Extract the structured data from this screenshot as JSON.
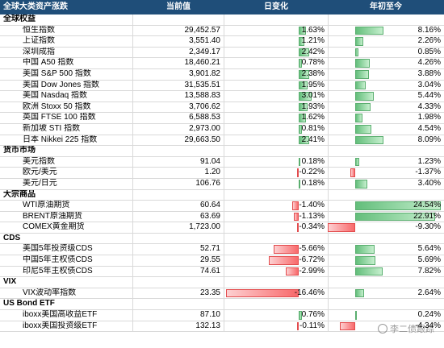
{
  "header": {
    "name": "全球大类资产涨跌",
    "price": "当前值",
    "day": "日变化",
    "ytd": "年初至今"
  },
  "watermark": "李二债跟踪",
  "rows": [
    {
      "kind": "section",
      "name": "全球权益"
    },
    {
      "kind": "item",
      "name": "恒生指数",
      "price": "29,452.57",
      "day": "1.63%",
      "d": 1.63,
      "ytd": "8.16%",
      "y": 8.16
    },
    {
      "kind": "item",
      "name": "上证指数",
      "price": "3,551.40",
      "day": "1.21%",
      "d": 1.21,
      "ytd": "2.26%",
      "y": 2.26
    },
    {
      "kind": "item",
      "name": "深圳成指",
      "price": "2,349.17",
      "day": "2.42%",
      "d": 2.42,
      "ytd": "0.85%",
      "y": 0.85
    },
    {
      "kind": "item",
      "name": "中国 A50 指数",
      "price": "18,460.21",
      "day": "0.78%",
      "d": 0.78,
      "ytd": "4.26%",
      "y": 4.26
    },
    {
      "kind": "item",
      "name": "美国 S&P 500 指数",
      "price": "3,901.82",
      "day": "2.38%",
      "d": 2.38,
      "ytd": "3.88%",
      "y": 3.88
    },
    {
      "kind": "item",
      "name": "美国 Dow Jones 指数",
      "price": "31,535.51",
      "day": "1.95%",
      "d": 1.95,
      "ytd": "3.04%",
      "y": 3.04
    },
    {
      "kind": "item",
      "name": "美国 Nasdaq 指数",
      "price": "13,588.83",
      "day": "3.01%",
      "d": 3.01,
      "ytd": "5.44%",
      "y": 5.44
    },
    {
      "kind": "item",
      "name": "欧洲 Stoxx 50 指数",
      "price": "3,706.62",
      "day": "1.93%",
      "d": 1.93,
      "ytd": "4.33%",
      "y": 4.33
    },
    {
      "kind": "item",
      "name": "英国 FTSE 100 指数",
      "price": "6,588.53",
      "day": "1.62%",
      "d": 1.62,
      "ytd": "1.98%",
      "y": 1.98
    },
    {
      "kind": "item",
      "name": "新加坡 STI 指数",
      "price": "2,973.00",
      "day": "0.81%",
      "d": 0.81,
      "ytd": "4.54%",
      "y": 4.54
    },
    {
      "kind": "item",
      "name": "日本 Nikkei 225 指数",
      "price": "29,663.50",
      "day": "2.41%",
      "d": 2.41,
      "ytd": "8.09%",
      "y": 8.09
    },
    {
      "kind": "section",
      "name": "货币市场"
    },
    {
      "kind": "item",
      "name": "美元指数",
      "price": "91.04",
      "day": "0.18%",
      "d": 0.18,
      "ytd": "1.23%",
      "y": 1.23
    },
    {
      "kind": "item",
      "name": "欧元/美元",
      "price": "1.20",
      "day": "-0.22%",
      "d": -0.22,
      "ytd": "-1.37%",
      "y": -1.37
    },
    {
      "kind": "item",
      "name": "美元/日元",
      "price": "106.76",
      "day": "0.18%",
      "d": 0.18,
      "ytd": "3.40%",
      "y": 3.4
    },
    {
      "kind": "section",
      "name": "大宗商品"
    },
    {
      "kind": "item",
      "name": "WTI原油期货",
      "price": "60.64",
      "day": "-1.40%",
      "d": -1.4,
      "ytd": "24.54%",
      "y": 24.54
    },
    {
      "kind": "item",
      "name": "BRENT原油期货",
      "price": "63.69",
      "day": "-1.13%",
      "d": -1.13,
      "ytd": "22.91%",
      "y": 22.91
    },
    {
      "kind": "item",
      "name": "COMEX黄金期货",
      "price": "1,723.00",
      "day": "-0.34%",
      "d": -0.34,
      "ytd": "-9.30%",
      "y": -9.3
    },
    {
      "kind": "section",
      "name": "CDS"
    },
    {
      "kind": "item",
      "name": "美国5年投资级CDS",
      "price": "52.71",
      "day": "-5.66%",
      "d": -5.66,
      "ytd": "5.64%",
      "y": 5.64
    },
    {
      "kind": "item",
      "name": "中国5年主权债CDS",
      "price": "29.55",
      "day": "-6.72%",
      "d": -6.72,
      "ytd": "5.69%",
      "y": 5.69
    },
    {
      "kind": "item",
      "name": "印尼5年主权债CDS",
      "price": "74.61",
      "day": "-2.99%",
      "d": -2.99,
      "ytd": "7.82%",
      "y": 7.82
    },
    {
      "kind": "section",
      "name": "VIX"
    },
    {
      "kind": "item",
      "name": "VIX波动率指数",
      "price": "23.35",
      "day": "-16.46%",
      "d": -16.46,
      "ytd": "2.64%",
      "y": 2.64
    },
    {
      "kind": "section",
      "name": "US Bond ETF"
    },
    {
      "kind": "item",
      "name": "iboxx美国高收益ETF",
      "price": "87.10",
      "day": "0.76%",
      "d": 0.76,
      "ytd": "0.24%",
      "y": 0.24
    },
    {
      "kind": "item",
      "name": "iboxx美国投资级ETF",
      "price": "132.13",
      "day": "-0.11%",
      "d": -0.11,
      "ytd": "-4.34%",
      "y": -4.34
    }
  ]
}
